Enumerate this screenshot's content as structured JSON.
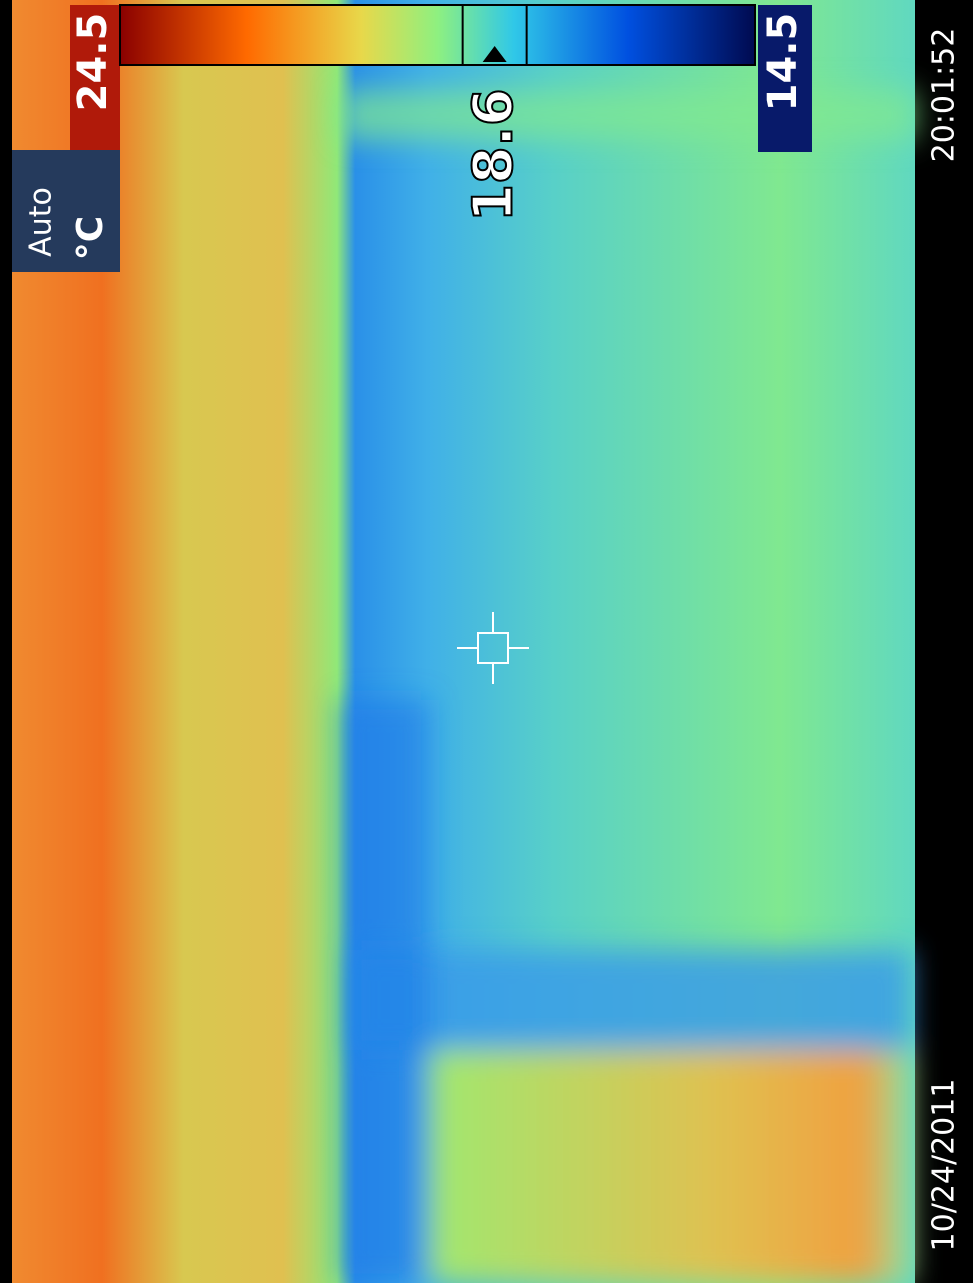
{
  "palette": {
    "mode": "Auto",
    "unit": "°C",
    "max": 24.5,
    "min": 14.5
  },
  "spot": {
    "temperature": 18.6
  },
  "timestamp": {
    "time": "20:01:52",
    "date": "10/24/2011"
  }
}
